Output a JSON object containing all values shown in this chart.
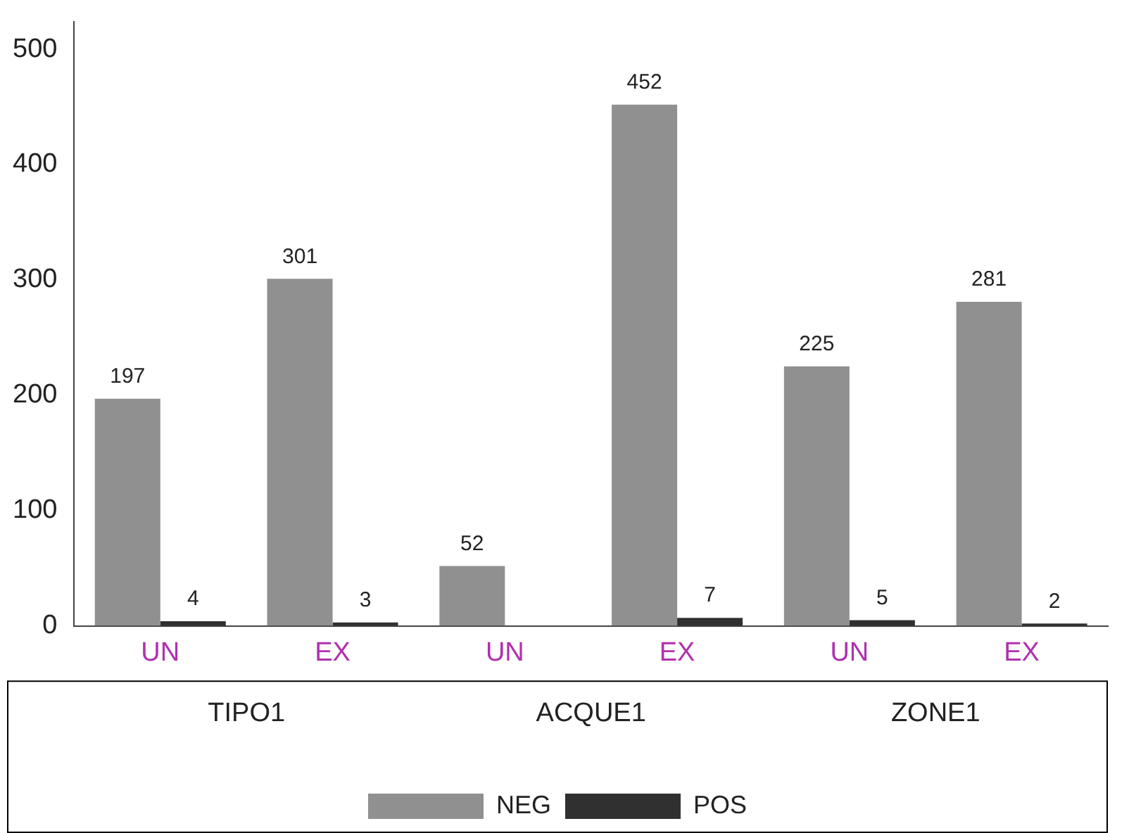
{
  "chart_data": {
    "type": "bar",
    "categories": [
      "UN",
      "EX",
      "UN",
      "EX",
      "UN",
      "EX"
    ],
    "series": [
      {
        "name": "NEG",
        "color": "#909090",
        "values": [
          197,
          301,
          52,
          452,
          225,
          281
        ]
      },
      {
        "name": "POS",
        "color": "#303030",
        "values": [
          4,
          3,
          null,
          7,
          5,
          2
        ]
      }
    ],
    "annotations": [
      "TIPO1",
      "ACQUE1",
      "ZONE1"
    ],
    "ylim": [
      0,
      524
    ],
    "yticks": [
      0,
      100,
      200,
      300,
      400,
      500
    ],
    "grid": false,
    "legend": "bottom",
    "data_labels": true
  }
}
